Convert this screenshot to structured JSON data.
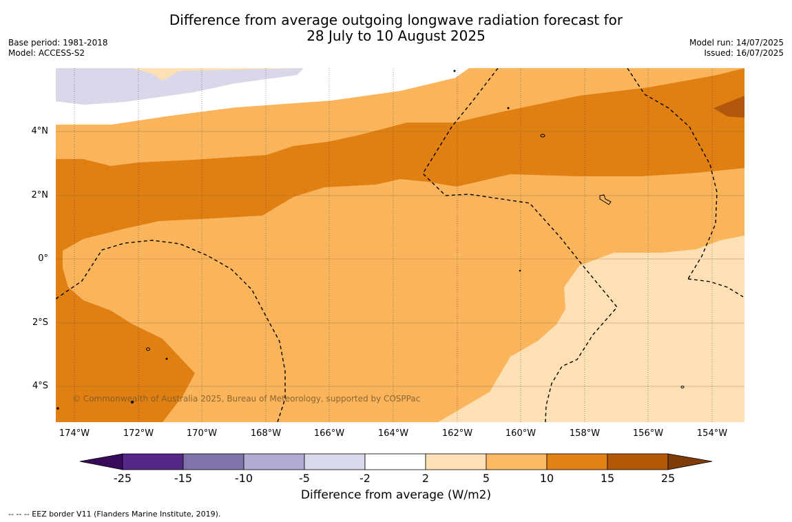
{
  "title": {
    "line1": "Difference from average outgoing longwave radiation forecast for",
    "line2": "28 July to 10 August 2025"
  },
  "meta_left": {
    "base_period": "Base period: 1981-2018",
    "model": "Model: ACCESS-S2"
  },
  "meta_right": {
    "model_run": "Model run: 14/07/2025",
    "issued": "Issued: 16/07/2025"
  },
  "map": {
    "latitude_labels": [
      "4°N",
      "2°N",
      "0°",
      "2°S",
      "4°S"
    ],
    "longitude_labels": [
      "174°W",
      "172°W",
      "170°W",
      "168°W",
      "166°W",
      "164°W",
      "162°W",
      "160°W",
      "158°W",
      "156°W",
      "154°W"
    ],
    "copyright": "© Commonwealth of Australia 2025, Bureau of Meteorology, supported by COSPPac",
    "fill_colors": {
      "light_lavender": "#d8d8ea",
      "white": "#ffffff",
      "pale_orange": "#fde0b4",
      "light_orange": "#f9b45c",
      "orange": "#e07f12",
      "dark_orange": "#b2580c"
    }
  },
  "colorbar": {
    "ticks": [
      "-25",
      "-15",
      "-10",
      "-5",
      "-2",
      "2",
      "5",
      "10",
      "15",
      "25"
    ],
    "colors": [
      "#3a0a5a",
      "#542788",
      "#8073ac",
      "#b2abd2",
      "#d8daeb",
      "#ffffff",
      "#fee0b6",
      "#fdb863",
      "#e08214",
      "#b35806",
      "#7f3b08"
    ],
    "title": "Difference from average (W/m2)"
  },
  "footnote": "--  --  -- EEZ border V11 (Flanders Marine Institute, 2019)."
}
